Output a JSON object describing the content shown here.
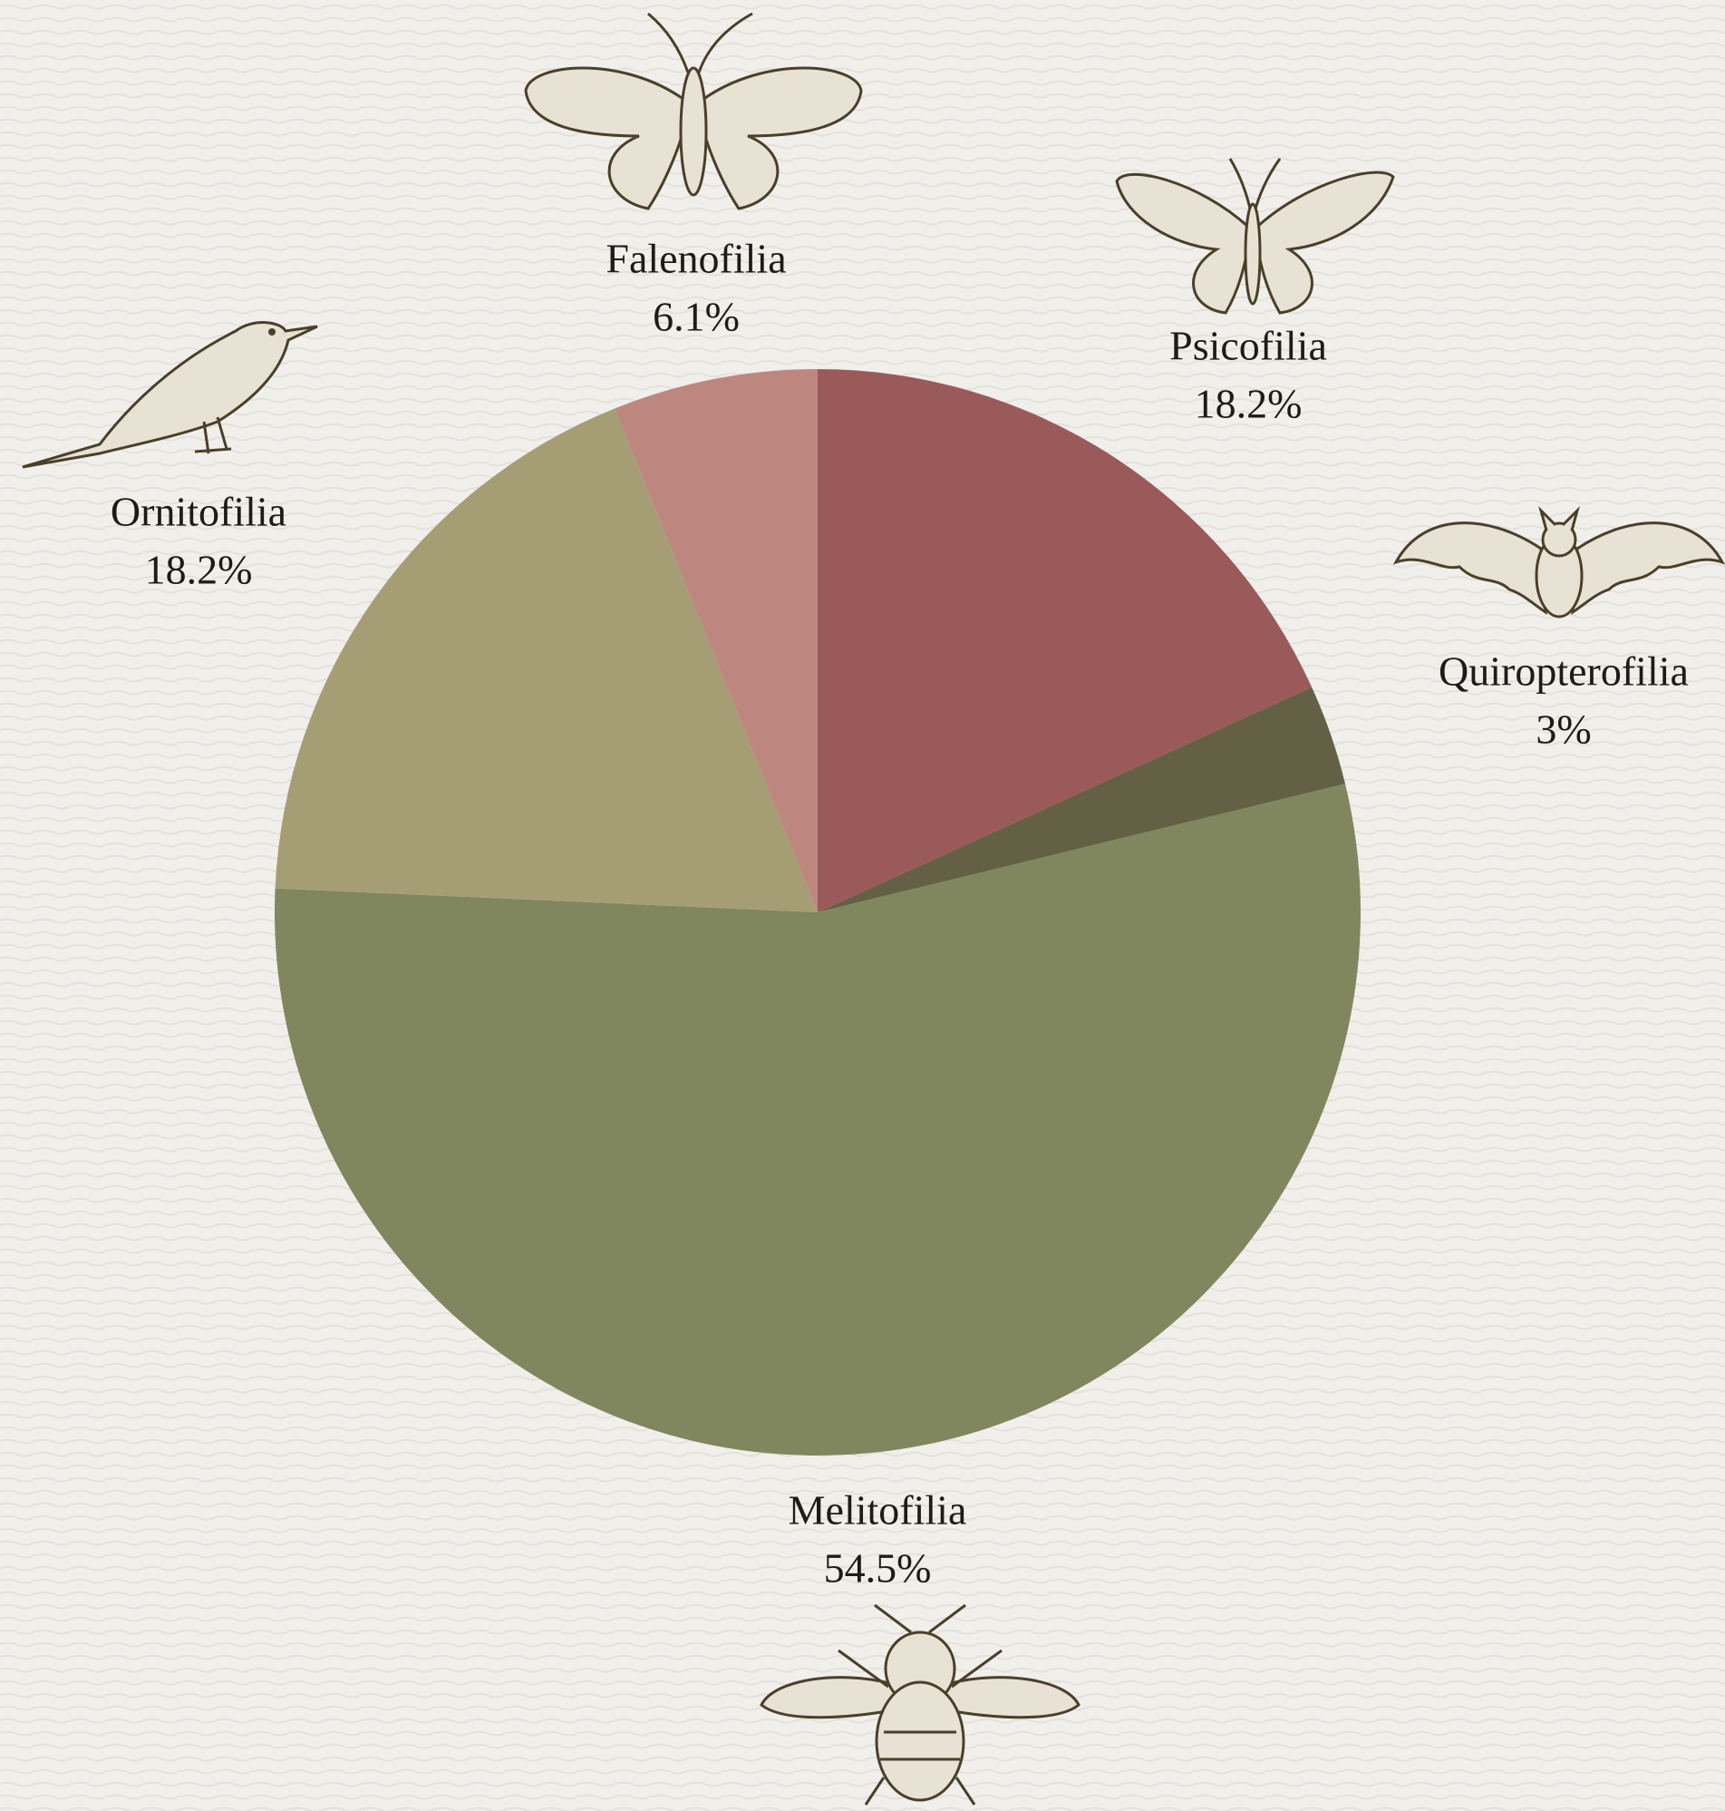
{
  "chart_data": {
    "type": "pie",
    "categories": [
      "Psicofilia",
      "Quiropterofilia",
      "Melitofilia",
      "Ornitofilia",
      "Falenofilia"
    ],
    "values": [
      18.2,
      3,
      54.5,
      18.2,
      6.1
    ],
    "value_labels": [
      "18.2%",
      "3%",
      "54.5%",
      "18.2%",
      "6.1%"
    ],
    "colors": [
      "#9a5a5a",
      "#636045",
      "#80865e",
      "#a59e74",
      "#bd877f"
    ]
  }
}
